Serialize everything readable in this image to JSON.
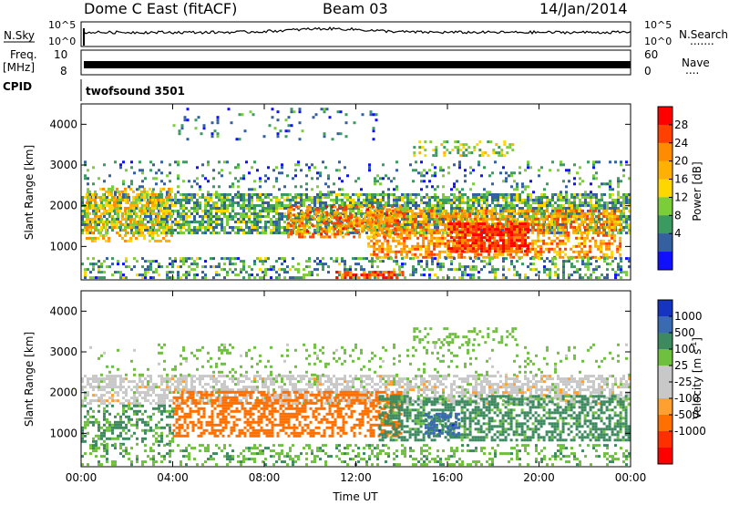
{
  "header": {
    "station": "Dome C East (fitACF)",
    "beam": "Beam 03",
    "date": "14/Jan/2014"
  },
  "side_labels": {
    "nsky": "N.Sky",
    "freq": "Freq.",
    "mhz": "[MHz]",
    "cpid": "CPID",
    "nsearch": "N.Search",
    "nsearch_dots": ".......",
    "nave": "Nave",
    "nave_dots": "...."
  },
  "noise_panel": {
    "left_top": "10^5",
    "left_bottom": "10^0",
    "right_top": "10^5",
    "right_bottom": "10^0"
  },
  "freq_panel": {
    "left_top": "10",
    "left_bottom": "8",
    "right_top": "60",
    "right_bottom": "0"
  },
  "cpid_panel": {
    "value": "twofsound 3501"
  },
  "power_panel": {
    "colorbar_label": "Power [dB]",
    "colorbar_ticks": [
      "28",
      "24",
      "20",
      "16",
      "12",
      "8",
      "4"
    ],
    "colorbar_colors": [
      "#ff0000",
      "#ff4000",
      "#ff8c00",
      "#ffb000",
      "#ffd700",
      "#7ccd3a",
      "#3a9a60",
      "#3560a0",
      "#1010ff"
    ]
  },
  "velocity_panel": {
    "colorbar_label": "Velocity [m s",
    "colorbar_label_sup": "-1",
    "colorbar_label_end": "]",
    "colorbar_ticks": [
      "1000",
      "500",
      "100",
      "25",
      "-25",
      "-100",
      "-500",
      "-1000"
    ],
    "colorbar_colors": [
      "#1535c0",
      "#3a6ab0",
      "#3d8a60",
      "#70c040",
      "#c8c8c8",
      "#c8c8c8",
      "#ffa030",
      "#ff7000",
      "#ff3000",
      "#ff0000"
    ]
  },
  "chart_data": [
    {
      "type": "heatmap",
      "title": "Power",
      "xlabel": "Time UT",
      "ylabel": "Slant Range [km]",
      "x_ticks": [
        "00:00",
        "04:00",
        "08:00",
        "12:00",
        "16:00",
        "20:00",
        "00:00"
      ],
      "xlim": [
        0,
        24
      ],
      "y_ticks": [
        1000,
        2000,
        3000,
        4000
      ],
      "ylim": [
        180,
        4500
      ],
      "colorbar": {
        "label": "Power [dB]",
        "ticks": [
          4,
          8,
          12,
          16,
          20,
          24,
          28
        ],
        "range": [
          0,
          32
        ]
      },
      "regions": [
        {
          "t": [
            0.0,
            24.0
          ],
          "r": [
            1300,
            2300
          ],
          "v": 10,
          "density": 0.72
        },
        {
          "t": [
            0.2,
            4.0
          ],
          "r": [
            1100,
            2400
          ],
          "v": 18,
          "density": 0.45
        },
        {
          "t": [
            12.5,
            23.5
          ],
          "r": [
            700,
            1900
          ],
          "v": 22,
          "density": 0.55
        },
        {
          "t": [
            16.0,
            19.5
          ],
          "r": [
            850,
            1550
          ],
          "v": 28,
          "density": 0.8
        },
        {
          "t": [
            9.0,
            14.0
          ],
          "r": [
            1200,
            2000
          ],
          "v": 23,
          "density": 0.55
        },
        {
          "t": [
            0.0,
            24.0
          ],
          "r": [
            200,
            700
          ],
          "v": 9,
          "density": 0.35
        },
        {
          "t": [
            11.0,
            14.0
          ],
          "r": [
            200,
            400
          ],
          "v": 26,
          "density": 0.7
        },
        {
          "t": [
            0.0,
            24.0
          ],
          "r": [
            2300,
            3100
          ],
          "v": 8,
          "density": 0.15
        },
        {
          "t": [
            4.0,
            13.0
          ],
          "r": [
            3600,
            4400
          ],
          "v": 6,
          "density": 0.08
        },
        {
          "t": [
            14.5,
            19.0
          ],
          "r": [
            3200,
            3600
          ],
          "v": 13,
          "density": 0.3
        }
      ]
    },
    {
      "type": "heatmap",
      "title": "Velocity",
      "xlabel": "Time UT",
      "ylabel": "Slant Range [km]",
      "x_ticks": [
        "00:00",
        "04:00",
        "08:00",
        "12:00",
        "16:00",
        "20:00",
        "00:00"
      ],
      "xlim": [
        0,
        24
      ],
      "y_ticks": [
        1000,
        2000,
        3000,
        4000
      ],
      "ylim": [
        180,
        4500
      ],
      "colorbar": {
        "label": "Velocity [m s-1]",
        "ticks": [
          -1000,
          -500,
          -100,
          -25,
          25,
          100,
          500,
          1000
        ]
      },
      "regions": [
        {
          "t": [
            0.0,
            24.0
          ],
          "r": [
            1700,
            2400
          ],
          "v": 0,
          "density": 0.6
        },
        {
          "t": [
            4.0,
            14.0
          ],
          "r": [
            900,
            2000
          ],
          "v": -300,
          "density": 0.55
        },
        {
          "t": [
            13.0,
            24.0
          ],
          "r": [
            800,
            1900
          ],
          "v": 150,
          "density": 0.55
        },
        {
          "t": [
            0.0,
            4.0
          ],
          "r": [
            700,
            1700
          ],
          "v": 120,
          "density": 0.45
        },
        {
          "t": [
            0.0,
            24.0
          ],
          "r": [
            200,
            700
          ],
          "v": 80,
          "density": 0.3
        },
        {
          "t": [
            15.0,
            16.5
          ],
          "r": [
            900,
            1500
          ],
          "v": 700,
          "density": 0.5
        },
        {
          "t": [
            0.0,
            24.0
          ],
          "r": [
            2400,
            3200
          ],
          "v": 50,
          "density": 0.12
        },
        {
          "t": [
            14.5,
            19.0
          ],
          "r": [
            3200,
            3600
          ],
          "v": 60,
          "density": 0.3
        }
      ]
    }
  ]
}
